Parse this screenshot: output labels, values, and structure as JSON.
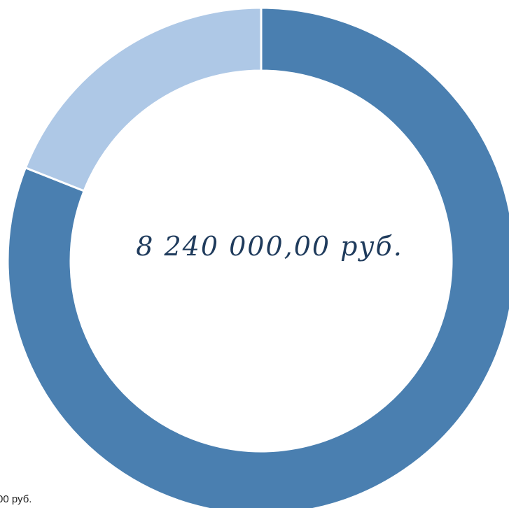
{
  "chart_data": {
    "type": "pie",
    "variant": "donut",
    "title": "",
    "center_label": "8 240 000,00 руб.",
    "slices": [
      {
        "label": "",
        "value": 0.81,
        "color": "#4a7fb0"
      },
      {
        "label": "",
        "value": 0.19,
        "color": "#aec8e6"
      }
    ],
    "start_angle_deg": 0,
    "direction": "clockwise",
    "separator_color": "#ffffff"
  },
  "footer": {
    "visible_text": "00 руб."
  }
}
